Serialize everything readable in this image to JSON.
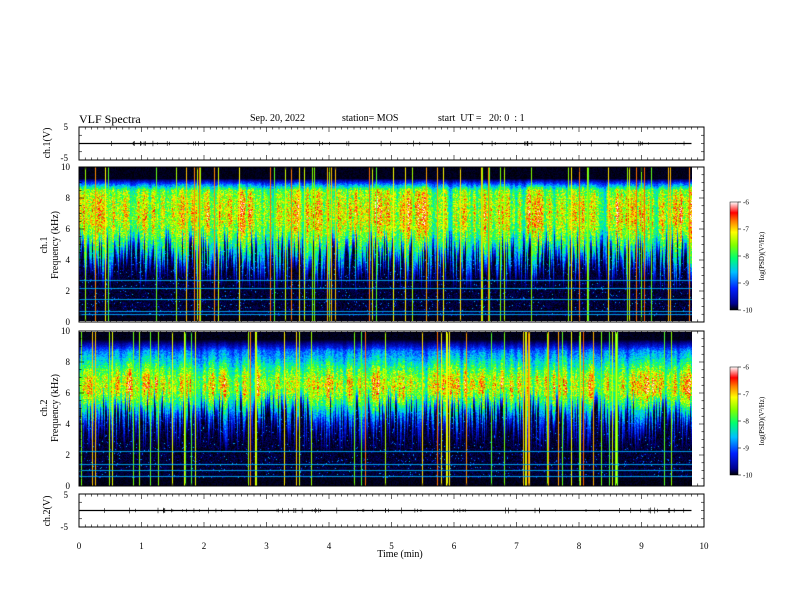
{
  "header": {
    "title": "VLF Spectra",
    "date": "Sep. 20, 2022",
    "station": "station= MOS",
    "start_ut": "start  UT =   20: 0  : 1"
  },
  "chart_data": [
    {
      "panel": "ch1-waveform",
      "type": "line",
      "ylabel": "ch.1(V)",
      "ylim": [
        -5,
        5
      ],
      "yticks": [
        "5",
        "-5"
      ],
      "baseline_value": 0
    },
    {
      "panel": "ch1-spectrogram",
      "type": "heatmap",
      "ylabel": [
        "ch.1",
        "Frequency (kHz)"
      ],
      "ylim": [
        0,
        10
      ],
      "yticks": [
        "0",
        "2",
        "4",
        "6",
        "8",
        "10"
      ],
      "xlim": [
        0,
        10
      ],
      "data_extent_min": 9.8,
      "colorbar": {
        "label": "log(PSD)(V²/Hz)",
        "range": [
          -10,
          -6
        ],
        "ticks": [
          "-6",
          "-7",
          "-8",
          "-9",
          "-10"
        ]
      },
      "band_kHz": [
        0.3,
        9.3
      ],
      "persistent_lines_kHz": [
        0.4,
        0.6,
        1.4,
        2.1,
        2.6
      ]
    },
    {
      "panel": "ch2-spectrogram",
      "type": "heatmap",
      "ylabel": [
        "ch.2",
        "Frequency (kHz)"
      ],
      "ylim": [
        0,
        10
      ],
      "yticks": [
        "0",
        "2",
        "4",
        "6",
        "8",
        "10"
      ],
      "xlim": [
        0,
        10
      ],
      "data_extent_min": 9.8,
      "colorbar": {
        "label": "log(PSD)(V²/Hz)",
        "range": [
          -10,
          -6
        ],
        "ticks": [
          "-6",
          "-7",
          "-8",
          "-9",
          "-10"
        ]
      },
      "band_kHz": [
        0.5,
        9.6
      ],
      "persistent_lines_kHz": [
        0.6,
        1.0,
        1.4,
        2.2
      ]
    },
    {
      "panel": "ch2-waveform",
      "type": "line",
      "ylabel": "ch.2(V)",
      "ylim": [
        -5,
        5
      ],
      "yticks": [
        "5",
        "-5"
      ],
      "baseline_value": 0
    }
  ],
  "xaxis": {
    "label": "Time  (min)",
    "range": [
      0,
      10
    ],
    "ticks": [
      "0",
      "1",
      "2",
      "3",
      "4",
      "5",
      "6",
      "7",
      "8",
      "9",
      "10"
    ]
  }
}
